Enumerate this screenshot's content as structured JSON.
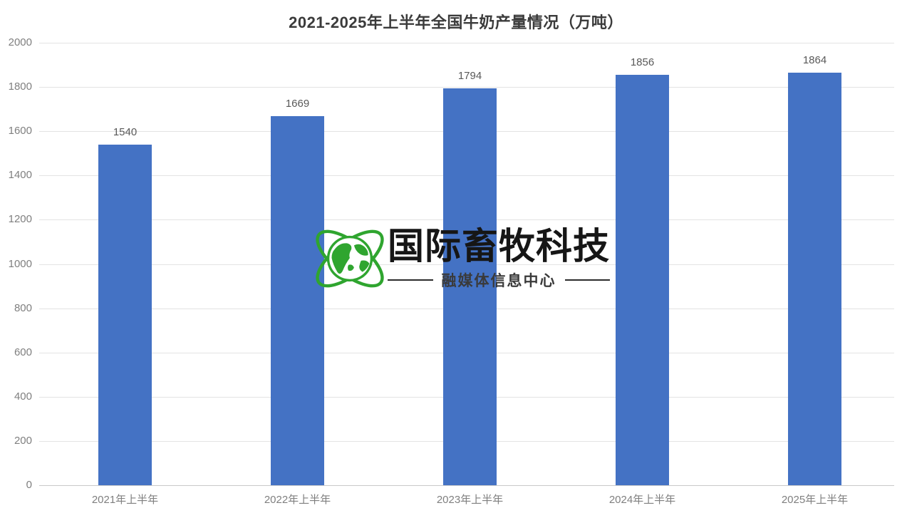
{
  "title": "2021-2025年上半年全国牛奶产量情况（万吨）",
  "chart_data": {
    "type": "bar",
    "title": "2021-2025年上半年全国牛奶产量情况（万吨）",
    "categories": [
      "2021年上半年",
      "2022年上半年",
      "2023年上半年",
      "2024年上半年",
      "2025年上半年"
    ],
    "values": [
      1540,
      1669,
      1794,
      1856,
      1864
    ],
    "xlabel": "",
    "ylabel": "",
    "ylim": [
      0,
      2000
    ],
    "ytick_step": 200,
    "grid": true,
    "legend": "none",
    "bar_color": "#4472C4",
    "value_labels_shown": true
  },
  "watermark": {
    "brand": "国际畜牧科技",
    "subtitle": "融媒体信息中心",
    "icon": "globe-orbit-icon",
    "green": "#2FA52F",
    "text_color": "#161616"
  },
  "colors": {
    "bar": "#4472C4",
    "gridline": "#e3e3e3",
    "axis_line": "#c9c9c9",
    "tick_label": "#7f7f7f",
    "value_label": "#595959",
    "title": "#3b3b3b"
  }
}
